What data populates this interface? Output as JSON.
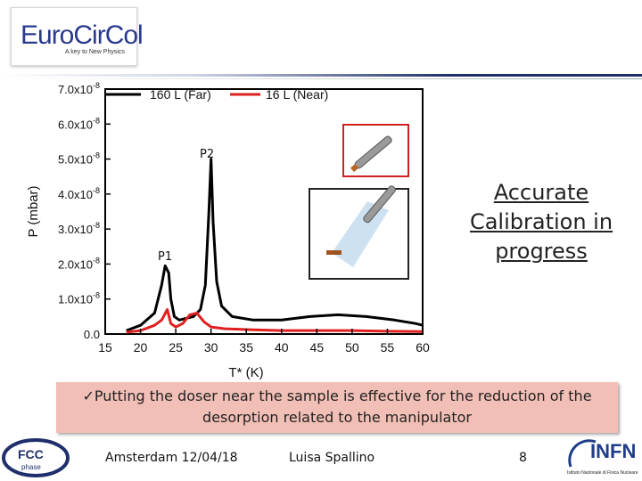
{
  "header": {
    "logo_text": "EuroCirCol",
    "logo_tagline": "A key to New Physics"
  },
  "chart_data": {
    "type": "line",
    "xlabel": "T* (K)",
    "ylabel": "P (mbar)",
    "xlim": [
      15,
      60
    ],
    "ylim": [
      0,
      7e-08
    ],
    "x_ticks": [
      "15",
      "20",
      "25",
      "30",
      "35",
      "40",
      "45",
      "50",
      "55",
      "60"
    ],
    "y_ticks": [
      "0.0",
      "1.0x10-8",
      "2.0x10-8",
      "3.0x10-8",
      "4.0x10-8",
      "5.0x10-8",
      "6.0x10-8",
      "7.0x10-8"
    ],
    "legend_position": "top",
    "series": [
      {
        "name": "160 L (Far)",
        "color": "#000000",
        "x": [
          18,
          20,
          22,
          23,
          23.5,
          24,
          24.3,
          24.8,
          25.5,
          26.5,
          27.5,
          28.5,
          29.2,
          29.7,
          30.0,
          30.3,
          30.8,
          31.5,
          33,
          36,
          40,
          44,
          48,
          52,
          56,
          59,
          60
        ],
        "y": [
          1e-09,
          2.5e-09,
          6e-09,
          1.4e-08,
          1.95e-08,
          1.75e-08,
          1e-08,
          5e-09,
          4e-09,
          4.5e-09,
          5e-09,
          7e-09,
          1.4e-08,
          3.5e-08,
          5e-08,
          3.2e-08,
          1.5e-08,
          8e-09,
          5e-09,
          4e-09,
          4e-09,
          5e-09,
          5.5e-09,
          5e-09,
          4e-09,
          3e-09,
          2.5e-09
        ]
      },
      {
        "name": "16 L (Near)",
        "color": "#e02020",
        "x": [
          18,
          20,
          22,
          23,
          23.8,
          24.3,
          25,
          26,
          27,
          28,
          29,
          30,
          32,
          36,
          40,
          45,
          50,
          55,
          60
        ],
        "y": [
          5e-10,
          1e-09,
          2.5e-09,
          4e-09,
          7e-09,
          3e-09,
          2e-09,
          3e-09,
          5.5e-09,
          6e-09,
          3.5e-09,
          2e-09,
          1.5e-09,
          1.2e-09,
          1e-09,
          1e-09,
          1e-09,
          8e-10,
          7e-10
        ]
      }
    ],
    "annotations": [
      "P2",
      "P1"
    ]
  },
  "callout": {
    "text_lines": [
      "Accurate",
      "Calibration in",
      "progress"
    ]
  },
  "bullet": {
    "check": "✓",
    "line1": "Putting the doser near the sample is effective for the reduction of the",
    "line2": "desorption related to the manipulator"
  },
  "footer": {
    "location_date": "Amsterdam 12/04/18",
    "author": "Luisa Spallino",
    "page_number": "8",
    "fcc_logo_text": "FCC",
    "fcc_logo_sub": "phase",
    "infn_logo_text": "INFN",
    "infn_logo_sub": "Istituto Nazionale di Fisica Nucleare"
  },
  "colors": {
    "accent_blue": "#1f2f6b",
    "bullet_bg": "#f2bfb6",
    "highlight_red": "#d02020"
  }
}
